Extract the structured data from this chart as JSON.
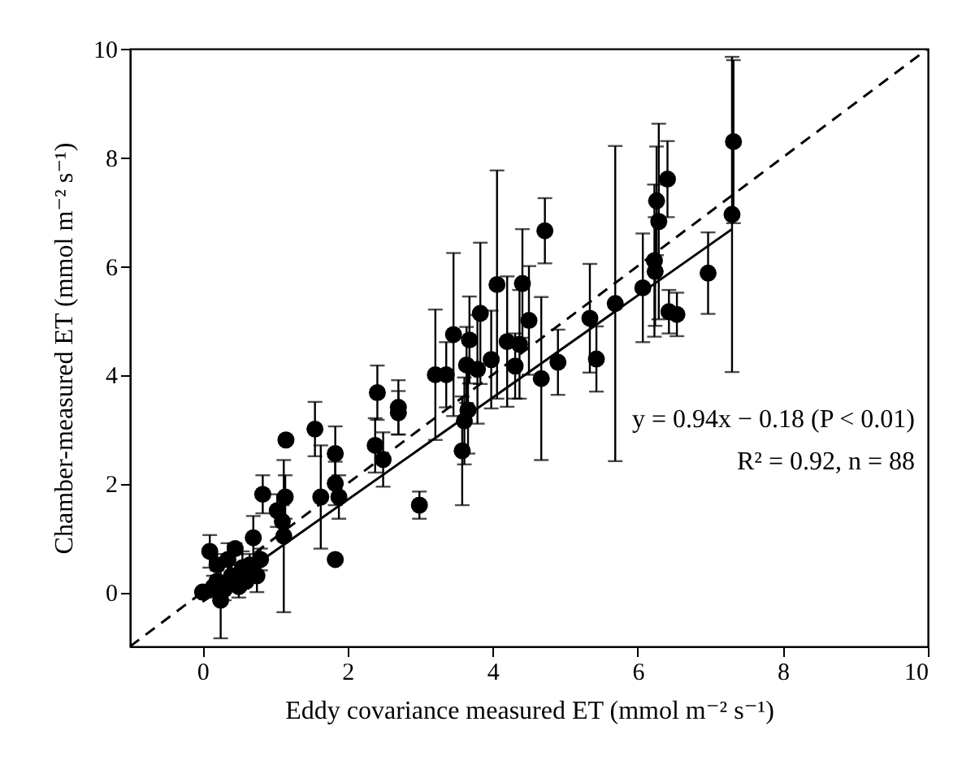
{
  "chart_data": {
    "type": "scatter",
    "xlabel": "Eddy covariance measured ET (mmol m⁻² s⁻¹)",
    "ylabel": "Chamber-measured ET (mmol m⁻² s⁻¹)",
    "xlim": [
      -1,
      10
    ],
    "ylim": [
      -1,
      10
    ],
    "xticks": [
      0,
      2,
      4,
      6,
      8,
      10
    ],
    "yticks": [
      0,
      2,
      4,
      6,
      8,
      10
    ],
    "grid": false,
    "annotations": [
      "y = 0.94x − 0.18 (P < 0.01)",
      "R² = 0.92, n = 88"
    ],
    "series": [
      {
        "color": "#000000",
        "marker": "circle",
        "x": [
          0,
          0.1,
          0.15,
          0.2,
          0.2,
          0.25,
          0.3,
          0.35,
          0.4,
          0.45,
          0.5,
          0.55,
          0.6,
          0.65,
          0.7,
          0.75,
          0.8,
          0.83,
          1.03,
          1.12,
          1.14,
          1.1,
          1.15,
          1.55,
          1.63,
          1.83,
          1.83,
          1.88,
          1.83,
          2.38,
          2.49,
          2.41,
          2.7,
          2.7,
          2.99,
          3.21,
          3.36,
          3.46,
          3.58,
          3.61,
          3.66,
          3.64,
          3.68,
          3.79,
          3.83,
          3.98,
          4.06,
          4.2,
          4.31,
          4.37,
          4.41,
          4.5,
          4.67,
          4.72,
          4.9,
          5.34,
          5.43,
          5.69,
          6.07,
          6.23,
          6.24,
          6.26,
          6.29,
          6.41,
          6.43,
          6.54,
          6.97,
          7.32,
          7.3
        ],
        "values": [
          0,
          0.75,
          0.1,
          0.2,
          0.5,
          -0.15,
          0.05,
          0.6,
          0.3,
          0.8,
          0.1,
          0.45,
          0.2,
          0.5,
          1.0,
          0.3,
          0.6,
          1.8,
          1.5,
          1.03,
          1.75,
          1.3,
          2.8,
          3.0,
          1.75,
          2.55,
          2.0,
          1.75,
          0.6,
          2.7,
          2.44,
          3.67,
          3.4,
          3.3,
          1.6,
          4.0,
          4.0,
          4.74,
          2.6,
          3.15,
          3.35,
          4.18,
          4.64,
          4.1,
          5.13,
          4.28,
          5.66,
          4.61,
          4.16,
          4.56,
          5.68,
          5.0,
          3.93,
          6.65,
          4.23,
          5.04,
          4.29,
          5.31,
          5.6,
          6.1,
          5.9,
          7.2,
          6.82,
          7.6,
          5.16,
          5.11,
          5.87,
          8.29,
          6.95
        ],
        "errors": [
          null,
          0.3,
          0.2,
          0.2,
          0.2,
          0.7,
          0.2,
          0.3,
          0.2,
          0.1,
          0.2,
          0.3,
          null,
          0.2,
          0.4,
          0.3,
          0.2,
          0.35,
          0.3,
          1.4,
          0.4,
          0.3,
          null,
          0.5,
          0.95,
          0.5,
          0.4,
          0.4,
          null,
          0.5,
          0.5,
          0.5,
          0.5,
          0.4,
          0.25,
          1.2,
          0.6,
          1.5,
          1.0,
          0.8,
          0.8,
          0.7,
          0.8,
          1.0,
          1.3,
          0.9,
          2.1,
          1.2,
          0.6,
          1.0,
          1.0,
          1.0,
          1.5,
          0.6,
          0.6,
          1.0,
          0.6,
          2.9,
          1.0,
          1.4,
          1.0,
          1.0,
          1.8,
          0.7,
          0.4,
          0.4,
          0.75,
          1.5,
          2.9
        ]
      },
      {
        "type": "line",
        "color": "#000000",
        "line_style": "solid",
        "x": [
          0,
          7.3
        ],
        "values": [
          -0.18,
          6.68
        ]
      },
      {
        "type": "line",
        "color": "#000000",
        "line_style": "dashed",
        "x": [
          -1,
          10
        ],
        "values": [
          -1,
          10
        ]
      }
    ]
  }
}
